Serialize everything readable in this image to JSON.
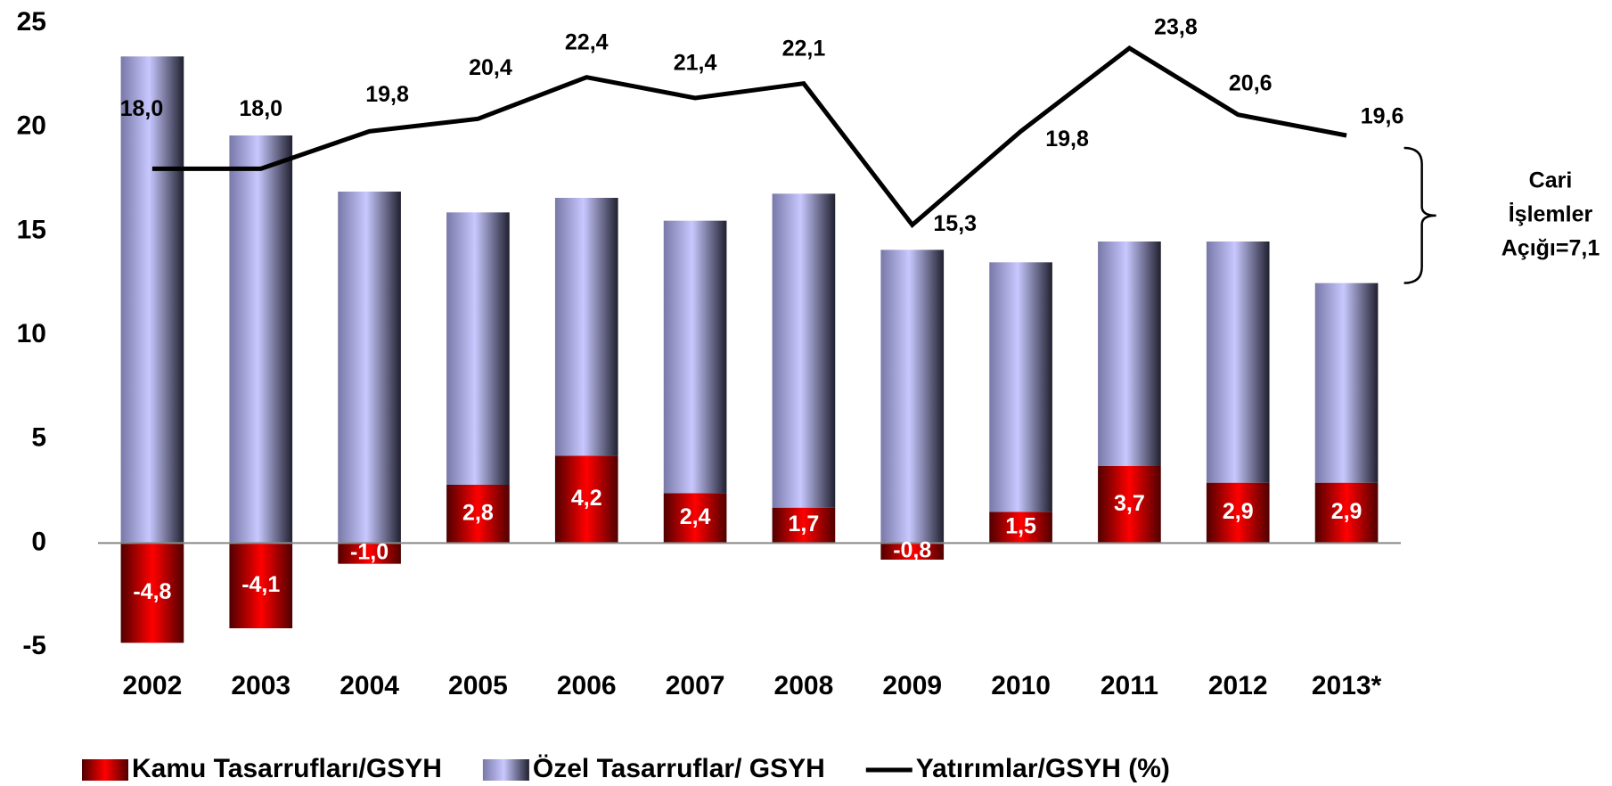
{
  "chart_data": {
    "type": "bar_line",
    "categories": [
      "2002",
      "2003",
      "2004",
      "2005",
      "2006",
      "2007",
      "2008",
      "2009",
      "2010",
      "2011",
      "2012",
      "2013*"
    ],
    "series": [
      {
        "name": "Kamu Tasarrufları/GSYH",
        "color": "#e00000",
        "type": "bar",
        "values": [
          -4.8,
          -4.1,
          -1.0,
          2.8,
          4.2,
          2.4,
          1.7,
          -0.8,
          1.5,
          3.7,
          2.9,
          2.9
        ],
        "value_labels": [
          "-4,8",
          "-4,1",
          "-1,0",
          "2,8",
          "4,2",
          "2,4",
          "1,7",
          "-0,8",
          "1,5",
          "3,7",
          "2,9",
          "2,9"
        ]
      },
      {
        "name": "Özel Tasarruflar/ GSYH",
        "color": "#b8b8f0",
        "type": "bar",
        "values": [
          23.4,
          19.6,
          16.9,
          13.1,
          12.4,
          13.1,
          15.1,
          14.1,
          12.0,
          10.8,
          11.6,
          9.6
        ]
      },
      {
        "name": "Yatırımlar/GSYH (%)",
        "color": "#000000",
        "type": "line",
        "values": [
          18.0,
          18.0,
          19.8,
          20.4,
          22.4,
          21.4,
          22.1,
          15.3,
          19.8,
          23.8,
          20.6,
          19.6
        ],
        "value_labels": [
          "18,0",
          "18,0",
          "19,8",
          "20,4",
          "22,4",
          "21,4",
          "22,1",
          "15,3",
          "19,8",
          "23,8",
          "20,6",
          "19,6"
        ]
      }
    ],
    "annotation": [
      "Cari",
      "İşlemler",
      "Açığı=7,1"
    ],
    "ylim": [
      -5,
      25
    ],
    "yticks": [
      -5,
      0,
      5,
      10,
      15,
      20,
      25
    ]
  }
}
